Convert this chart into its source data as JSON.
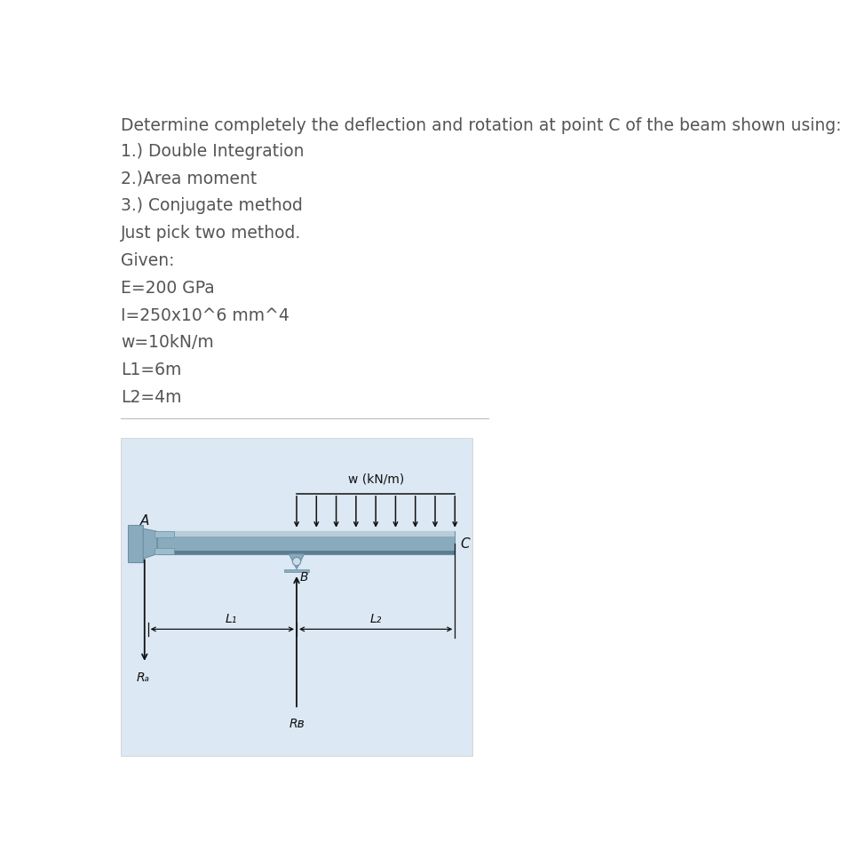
{
  "title_line": "Determine completely the deflection and rotation at point C of the beam shown using:",
  "methods": [
    "1.) Double Integration",
    "2.)Area moment",
    "3.) Conjugate method"
  ],
  "note": "Just pick two method.",
  "given_label": "Given:",
  "given_items": [
    "E=200 GPa",
    "I=250x10^6 mm^4",
    "w=10kN/m",
    "L1=6m",
    "L2=4m"
  ],
  "text_color": "#555555",
  "bg_color": "#ffffff",
  "diagram_bg": "#dce8f3",
  "beam_color_top": "#b8cdd8",
  "beam_color_mid": "#8aabbd",
  "beam_color_bot": "#5a7d90",
  "arrow_color": "#111111",
  "label_color": "#111111",
  "line_color": "#bbbbbb",
  "title_fontsize": 13.5,
  "body_fontsize": 13.5
}
